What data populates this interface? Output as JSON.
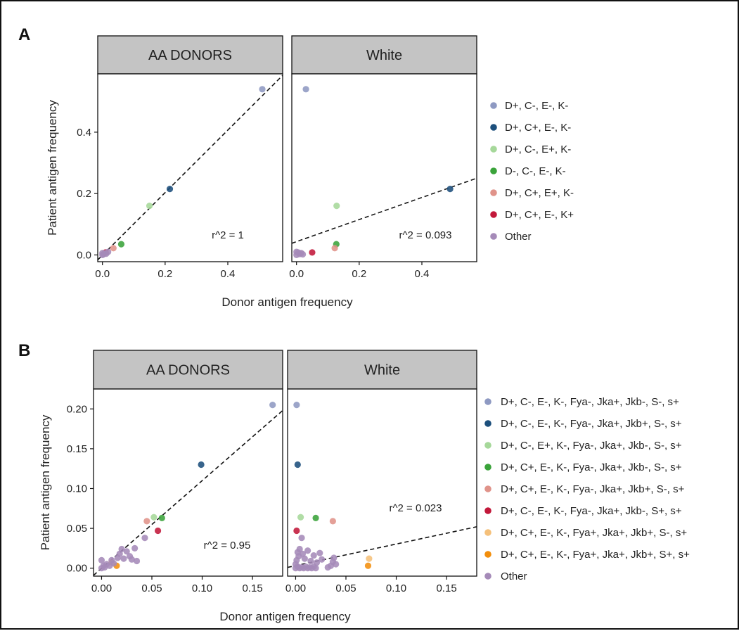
{
  "chart_data": [
    {
      "panel": "A",
      "type": "scatter",
      "xlabel": "Donor antigen frequency",
      "ylabel": "Patient antigen frequency",
      "xlim": [
        -0.015,
        0.575
      ],
      "ylim": [
        -0.022,
        0.59
      ],
      "xticks": [
        0.0,
        0.2,
        0.4
      ],
      "yticks": [
        0.0,
        0.2,
        0.4
      ],
      "xtick_labels": [
        "0.0",
        "0.2",
        "0.4"
      ],
      "ytick_labels": [
        "0.0",
        "0.2",
        "0.4"
      ],
      "grid": false,
      "legend_position": "right",
      "legend": [
        {
          "label": "D+, C-, E-, K-",
          "color": "#8e99c2"
        },
        {
          "label": "D+, C+, E-, K-",
          "color": "#1c4f7c"
        },
        {
          "label": "D+, C-, E+, K-",
          "color": "#a6d89a"
        },
        {
          "label": "D-, C-, E-, K-",
          "color": "#3aa33a"
        },
        {
          "label": "D+, C+, E+, K-",
          "color": "#e0938a"
        },
        {
          "label": "D+, C+, E-, K+",
          "color": "#c2183a"
        },
        {
          "label": "Other",
          "color": "#a58ab8"
        }
      ],
      "facets": [
        {
          "strip": "AA DONORS",
          "r2_label": "r^2 = 1",
          "fit_line": {
            "x": [
              -0.015,
              0.575
            ],
            "y": [
              -0.016,
              0.585
            ]
          },
          "points": [
            {
              "x": 0.51,
              "y": 0.54,
              "color": "#8e99c2"
            },
            {
              "x": 0.215,
              "y": 0.215,
              "color": "#1c4f7c"
            },
            {
              "x": 0.15,
              "y": 0.16,
              "color": "#a6d89a"
            },
            {
              "x": 0.06,
              "y": 0.035,
              "color": "#3aa33a"
            },
            {
              "x": 0.035,
              "y": 0.022,
              "color": "#e0938a"
            },
            {
              "x": 0.01,
              "y": 0.008,
              "color": "#c2183a"
            },
            {
              "x": 0.0,
              "y": 0.0,
              "color": "#a58ab8"
            },
            {
              "x": 0.003,
              "y": 0.002,
              "color": "#a58ab8"
            },
            {
              "x": 0.006,
              "y": 0.005,
              "color": "#a58ab8"
            },
            {
              "x": 0.012,
              "y": 0.004,
              "color": "#a58ab8"
            },
            {
              "x": 0.018,
              "y": 0.01,
              "color": "#a58ab8"
            },
            {
              "x": 0.0,
              "y": 0.006,
              "color": "#a58ab8"
            }
          ]
        },
        {
          "strip": "White",
          "r2_label": "r^2 = 0.093",
          "fit_line": {
            "x": [
              -0.015,
              0.575
            ],
            "y": [
              0.038,
              0.25
            ]
          },
          "points": [
            {
              "x": 0.03,
              "y": 0.54,
              "color": "#8e99c2"
            },
            {
              "x": 0.49,
              "y": 0.215,
              "color": "#1c4f7c"
            },
            {
              "x": 0.128,
              "y": 0.16,
              "color": "#a6d89a"
            },
            {
              "x": 0.127,
              "y": 0.035,
              "color": "#3aa33a"
            },
            {
              "x": 0.122,
              "y": 0.022,
              "color": "#e0938a"
            },
            {
              "x": 0.05,
              "y": 0.008,
              "color": "#c2183a"
            },
            {
              "x": 0.0,
              "y": 0.0,
              "color": "#a58ab8"
            },
            {
              "x": 0.005,
              "y": 0.008,
              "color": "#a58ab8"
            },
            {
              "x": 0.01,
              "y": 0.003,
              "color": "#a58ab8"
            },
            {
              "x": 0.015,
              "y": 0.006,
              "color": "#a58ab8"
            },
            {
              "x": 0.02,
              "y": 0.002,
              "color": "#a58ab8"
            },
            {
              "x": 0.0,
              "y": 0.01,
              "color": "#a58ab8"
            }
          ]
        }
      ]
    },
    {
      "panel": "B",
      "type": "scatter",
      "xlabel": "Donor antigen frequency",
      "ylabel": "Patient antigen frequency",
      "xlim": [
        -0.008,
        0.18
      ],
      "ylim": [
        -0.01,
        0.225
      ],
      "xticks": [
        0.0,
        0.05,
        0.1,
        0.15
      ],
      "yticks": [
        0.0,
        0.05,
        0.1,
        0.15,
        0.2
      ],
      "xtick_labels": [
        "0.00",
        "0.05",
        "0.10",
        "0.15"
      ],
      "ytick_labels": [
        "0.00",
        "0.05",
        "0.10",
        "0.15",
        "0.20"
      ],
      "grid": false,
      "legend_position": "right",
      "legend": [
        {
          "label": "D+, C-, E-, K-, Fya-, Jka+, Jkb-, S-, s+",
          "color": "#8e99c2"
        },
        {
          "label": "D+, C-, E-, K-, Fya-, Jka+, Jkb+, S-, s+",
          "color": "#1c4f7c"
        },
        {
          "label": "D+, C-, E+, K-, Fya-, Jka+, Jkb-, S-, s+",
          "color": "#a6d89a"
        },
        {
          "label": "D+, C+, E-, K-, Fya-, Jka+, Jkb-, S-, s+",
          "color": "#3aa33a"
        },
        {
          "label": "D+, C+, E-, K-, Fya-, Jka+, Jkb+, S-, s+",
          "color": "#e0938a"
        },
        {
          "label": "D+, C-, E-, K-, Fya-, Jka+, Jkb-, S+, s+",
          "color": "#c2183a"
        },
        {
          "label": "D+, C+, E-, K-, Fya+, Jka+, Jkb+, S-, s+",
          "color": "#f5c07a"
        },
        {
          "label": "D+, C+, E-, K-, Fya+, Jka+, Jkb+, S+, s+",
          "color": "#f28e0c"
        },
        {
          "label": "Other",
          "color": "#a58ab8"
        }
      ],
      "facets": [
        {
          "strip": "AA DONORS",
          "r2_label": "r^2 = 0.95",
          "fit_line": {
            "x": [
              -0.008,
              0.18
            ],
            "y": [
              -0.009,
              0.198
            ]
          },
          "points": [
            {
              "x": 0.17,
              "y": 0.205,
              "color": "#8e99c2"
            },
            {
              "x": 0.099,
              "y": 0.13,
              "color": "#1c4f7c"
            },
            {
              "x": 0.052,
              "y": 0.064,
              "color": "#a6d89a"
            },
            {
              "x": 0.06,
              "y": 0.063,
              "color": "#3aa33a"
            },
            {
              "x": 0.045,
              "y": 0.059,
              "color": "#e0938a"
            },
            {
              "x": 0.056,
              "y": 0.047,
              "color": "#c2183a"
            },
            {
              "x": 0.01,
              "y": 0.007,
              "color": "#f5c07a"
            },
            {
              "x": 0.015,
              "y": 0.003,
              "color": "#f28e0c"
            },
            {
              "x": 0.0,
              "y": 0.0,
              "color": "#a58ab8"
            },
            {
              "x": 0.002,
              "y": 0.003,
              "color": "#a58ab8"
            },
            {
              "x": 0.003,
              "y": 0.001,
              "color": "#a58ab8"
            },
            {
              "x": 0.005,
              "y": 0.005,
              "color": "#a58ab8"
            },
            {
              "x": 0.0,
              "y": 0.01,
              "color": "#a58ab8"
            },
            {
              "x": 0.008,
              "y": 0.003,
              "color": "#a58ab8"
            },
            {
              "x": 0.01,
              "y": 0.01,
              "color": "#a58ab8"
            },
            {
              "x": 0.012,
              "y": 0.006,
              "color": "#a58ab8"
            },
            {
              "x": 0.016,
              "y": 0.013,
              "color": "#a58ab8"
            },
            {
              "x": 0.018,
              "y": 0.018,
              "color": "#a58ab8"
            },
            {
              "x": 0.02,
              "y": 0.024,
              "color": "#a58ab8"
            },
            {
              "x": 0.022,
              "y": 0.012,
              "color": "#a58ab8"
            },
            {
              "x": 0.025,
              "y": 0.021,
              "color": "#a58ab8"
            },
            {
              "x": 0.028,
              "y": 0.015,
              "color": "#a58ab8"
            },
            {
              "x": 0.03,
              "y": 0.011,
              "color": "#a58ab8"
            },
            {
              "x": 0.033,
              "y": 0.025,
              "color": "#a58ab8"
            },
            {
              "x": 0.035,
              "y": 0.009,
              "color": "#a58ab8"
            },
            {
              "x": 0.043,
              "y": 0.038,
              "color": "#a58ab8"
            }
          ]
        },
        {
          "strip": "White",
          "r2_label": "r^2 = 0.023",
          "fit_line": {
            "x": [
              -0.008,
              0.18
            ],
            "y": [
              0.001,
              0.052
            ]
          },
          "points": [
            {
              "x": 0.001,
              "y": 0.205,
              "color": "#8e99c2"
            },
            {
              "x": 0.002,
              "y": 0.13,
              "color": "#1c4f7c"
            },
            {
              "x": 0.005,
              "y": 0.064,
              "color": "#a6d89a"
            },
            {
              "x": 0.02,
              "y": 0.063,
              "color": "#3aa33a"
            },
            {
              "x": 0.037,
              "y": 0.059,
              "color": "#e0938a"
            },
            {
              "x": 0.001,
              "y": 0.047,
              "color": "#c2183a"
            },
            {
              "x": 0.073,
              "y": 0.012,
              "color": "#f5c07a"
            },
            {
              "x": 0.072,
              "y": 0.003,
              "color": "#f28e0c"
            },
            {
              "x": 0.0,
              "y": 0.0,
              "color": "#a58ab8"
            },
            {
              "x": 0.002,
              "y": 0.002,
              "color": "#a58ab8"
            },
            {
              "x": 0.004,
              "y": 0.0,
              "color": "#a58ab8"
            },
            {
              "x": 0.006,
              "y": 0.001,
              "color": "#a58ab8"
            },
            {
              "x": 0.008,
              "y": 0.0,
              "color": "#a58ab8"
            },
            {
              "x": 0.01,
              "y": 0.002,
              "color": "#a58ab8"
            },
            {
              "x": 0.012,
              "y": 0.0,
              "color": "#a58ab8"
            },
            {
              "x": 0.014,
              "y": 0.001,
              "color": "#a58ab8"
            },
            {
              "x": 0.016,
              "y": 0.0,
              "color": "#a58ab8"
            },
            {
              "x": 0.018,
              "y": 0.002,
              "color": "#a58ab8"
            },
            {
              "x": 0.02,
              "y": 0.0,
              "color": "#a58ab8"
            },
            {
              "x": 0.0,
              "y": 0.005,
              "color": "#a58ab8"
            },
            {
              "x": 0.001,
              "y": 0.01,
              "color": "#a58ab8"
            },
            {
              "x": 0.003,
              "y": 0.015,
              "color": "#a58ab8"
            },
            {
              "x": 0.002,
              "y": 0.02,
              "color": "#a58ab8"
            },
            {
              "x": 0.004,
              "y": 0.024,
              "color": "#a58ab8"
            },
            {
              "x": 0.007,
              "y": 0.018,
              "color": "#a58ab8"
            },
            {
              "x": 0.009,
              "y": 0.012,
              "color": "#a58ab8"
            },
            {
              "x": 0.012,
              "y": 0.022,
              "color": "#a58ab8"
            },
            {
              "x": 0.015,
              "y": 0.009,
              "color": "#a58ab8"
            },
            {
              "x": 0.018,
              "y": 0.016,
              "color": "#a58ab8"
            },
            {
              "x": 0.021,
              "y": 0.007,
              "color": "#a58ab8"
            },
            {
              "x": 0.024,
              "y": 0.019,
              "color": "#a58ab8"
            },
            {
              "x": 0.026,
              "y": 0.011,
              "color": "#a58ab8"
            },
            {
              "x": 0.006,
              "y": 0.038,
              "color": "#a58ab8"
            },
            {
              "x": 0.035,
              "y": 0.003,
              "color": "#a58ab8"
            },
            {
              "x": 0.037,
              "y": 0.008,
              "color": "#a58ab8"
            },
            {
              "x": 0.038,
              "y": 0.013,
              "color": "#a58ab8"
            },
            {
              "x": 0.04,
              "y": 0.005,
              "color": "#a58ab8"
            },
            {
              "x": 0.032,
              "y": 0.001,
              "color": "#a58ab8"
            }
          ]
        }
      ]
    }
  ]
}
